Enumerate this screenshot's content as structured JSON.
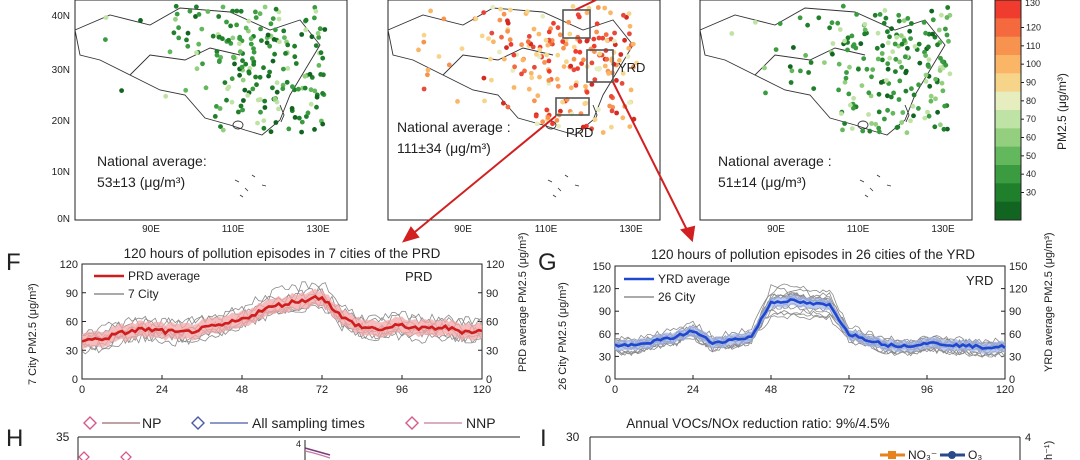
{
  "maps": {
    "lat_ticks": [
      "40N",
      "30N",
      "20N",
      "10N",
      "0N"
    ],
    "lon_ticks": [
      "90E",
      "110E",
      "130E"
    ],
    "left": {
      "label": "National average:",
      "value": "53±13 (μg/m³)"
    },
    "center": {
      "label": "National average :",
      "value": "111±34 (μg/m³)",
      "box_labels": [
        "YRD",
        "PRD"
      ]
    },
    "right": {
      "label": "National average :",
      "value": "51±14 (μg/m³)"
    }
  },
  "colorbar": {
    "ticks": [
      "120",
      "110",
      "100",
      "90",
      "80",
      "70",
      "60",
      "50",
      "40",
      "30"
    ],
    "top_partial": "130",
    "unit": "PM2.5 (μg/m³)",
    "colors": [
      "#f03c2e",
      "#f4693e",
      "#f7924f",
      "#fab666",
      "#f6d58a",
      "#e6eebf",
      "#bfe3a4",
      "#93cf7f",
      "#63b75c",
      "#3a9b40",
      "#1f7f2b",
      "#116521"
    ]
  },
  "chart_data": [
    {
      "panel": "F",
      "type": "line",
      "title": "120 hours of pollution episodes in 7 cities of the PRD",
      "ylabel": "7 City PM2.5 (μg/m³)",
      "y2label": "PRD average PM2.5 (μg/m³)",
      "ylim": [
        0,
        120
      ],
      "yticks": [
        0,
        30,
        60,
        90,
        120
      ],
      "xticks": [
        0,
        24,
        48,
        72,
        96,
        120
      ],
      "xlim": [
        0,
        120
      ],
      "legend": [
        "PRD average",
        "7 City"
      ],
      "annotation": "PRD",
      "series": [
        {
          "name": "PRD average",
          "x": [
            0,
            6,
            12,
            18,
            24,
            30,
            36,
            42,
            48,
            54,
            60,
            66,
            72,
            78,
            84,
            90,
            96,
            102,
            108,
            114,
            120
          ],
          "values": [
            40,
            42,
            48,
            52,
            50,
            48,
            52,
            56,
            62,
            72,
            78,
            82,
            86,
            64,
            54,
            52,
            56,
            52,
            54,
            50,
            50
          ]
        }
      ]
    },
    {
      "panel": "G",
      "type": "line",
      "title": "120 hours of pollution episodes in 26 cities of the YRD",
      "ylabel": "26 City PM2.5 (μg/m³)",
      "y2label": "YRD average PM2.5 (μg/m³)",
      "ylim": [
        0,
        150
      ],
      "yticks": [
        0,
        30,
        60,
        90,
        120,
        150
      ],
      "xticks": [
        0,
        24,
        48,
        72,
        96,
        120
      ],
      "xlim": [
        0,
        120
      ],
      "legend": [
        "YRD average",
        "26 City"
      ],
      "annotation": "YRD",
      "series": [
        {
          "name": "YRD average",
          "x": [
            0,
            6,
            12,
            18,
            24,
            30,
            36,
            42,
            48,
            54,
            60,
            66,
            72,
            78,
            84,
            90,
            96,
            102,
            108,
            114,
            120
          ],
          "values": [
            45,
            44,
            50,
            55,
            64,
            48,
            52,
            56,
            102,
            104,
            100,
            98,
            60,
            52,
            45,
            44,
            48,
            46,
            44,
            42,
            43
          ]
        }
      ]
    },
    {
      "panel": "H",
      "type": "line",
      "ylim_top": "35",
      "inset_tick": "4",
      "legend": [
        "NP",
        "All sampling times",
        "NNP"
      ]
    },
    {
      "panel": "I",
      "type": "line",
      "title": "Annual VOCs/NOx reduction ratio: 9%/4.5%",
      "ylim_top": "30",
      "y2_top": "4",
      "y2label": "h⁻¹)",
      "legend": [
        "NO₃⁻",
        "O₃"
      ]
    }
  ],
  "panel_letters": {
    "F": "F",
    "G": "G",
    "H": "H",
    "I": "I"
  }
}
